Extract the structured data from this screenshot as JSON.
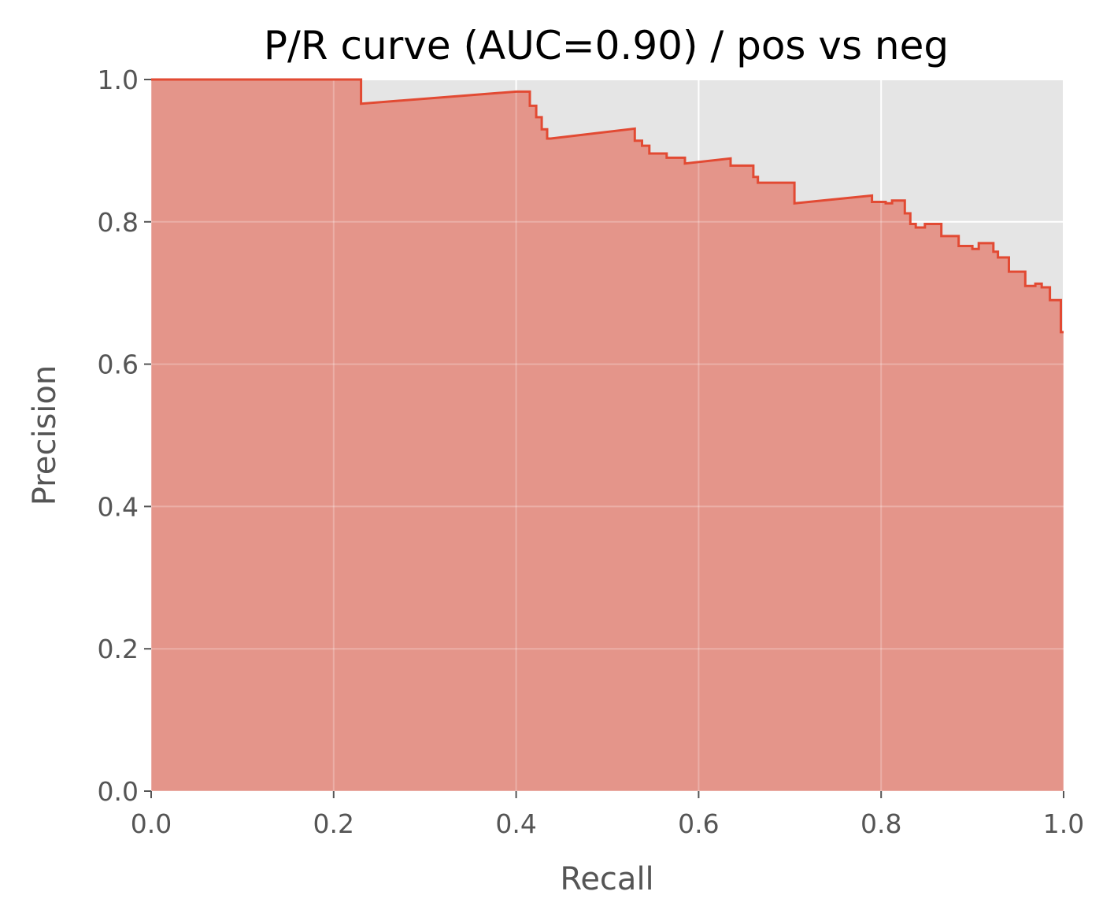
{
  "chart_data": {
    "type": "area",
    "title": "P/R curve (AUC=0.90) / pos vs neg",
    "xlabel": "Recall",
    "ylabel": "Precision",
    "xlim": [
      0.0,
      1.0
    ],
    "ylim": [
      0.0,
      1.0
    ],
    "x_ticks": [
      "0.0",
      "0.2",
      "0.4",
      "0.6",
      "0.8",
      "1.0"
    ],
    "y_ticks": [
      "0.0",
      "0.2",
      "0.4",
      "0.6",
      "0.8",
      "1.0"
    ],
    "grid": true,
    "style": "ggplot",
    "colors": {
      "line": "#E24A33",
      "fill": "#E4958A",
      "axes_background": "#E5E5E5",
      "grid": "#FFFFFF"
    },
    "series": [
      {
        "recall": [
          0.0,
          0.23,
          0.23,
          0.4,
          0.415,
          0.415,
          0.422,
          0.422,
          0.428,
          0.428,
          0.434,
          0.434,
          0.438,
          0.438,
          0.53,
          0.53,
          0.538,
          0.538,
          0.546,
          0.546,
          0.565,
          0.565,
          0.585,
          0.585,
          0.635,
          0.635,
          0.66,
          0.66,
          0.665,
          0.665,
          0.705,
          0.705,
          0.79,
          0.79,
          0.805,
          0.805,
          0.812,
          0.812,
          0.826,
          0.826,
          0.832,
          0.832,
          0.838,
          0.838,
          0.848,
          0.848,
          0.866,
          0.866,
          0.885,
          0.885,
          0.9,
          0.9,
          0.907,
          0.907,
          0.923,
          0.923,
          0.928,
          0.928,
          0.94,
          0.94,
          0.958,
          0.958,
          0.969,
          0.969,
          0.976,
          0.976,
          0.985,
          0.985,
          0.997,
          0.997,
          1.0
        ],
        "precision": [
          1.0,
          1.0,
          0.966,
          0.983,
          0.983,
          0.963,
          0.963,
          0.947,
          0.947,
          0.93,
          0.93,
          0.917,
          0.917,
          0.917,
          0.931,
          0.914,
          0.914,
          0.907,
          0.907,
          0.896,
          0.896,
          0.89,
          0.89,
          0.882,
          0.889,
          0.879,
          0.879,
          0.863,
          0.863,
          0.855,
          0.855,
          0.826,
          0.837,
          0.828,
          0.828,
          0.826,
          0.826,
          0.83,
          0.83,
          0.812,
          0.812,
          0.797,
          0.797,
          0.792,
          0.792,
          0.797,
          0.797,
          0.78,
          0.78,
          0.766,
          0.766,
          0.762,
          0.762,
          0.77,
          0.77,
          0.758,
          0.758,
          0.75,
          0.75,
          0.73,
          0.73,
          0.71,
          0.71,
          0.713,
          0.713,
          0.708,
          0.708,
          0.69,
          0.69,
          0.645,
          0.645
        ]
      }
    ]
  }
}
